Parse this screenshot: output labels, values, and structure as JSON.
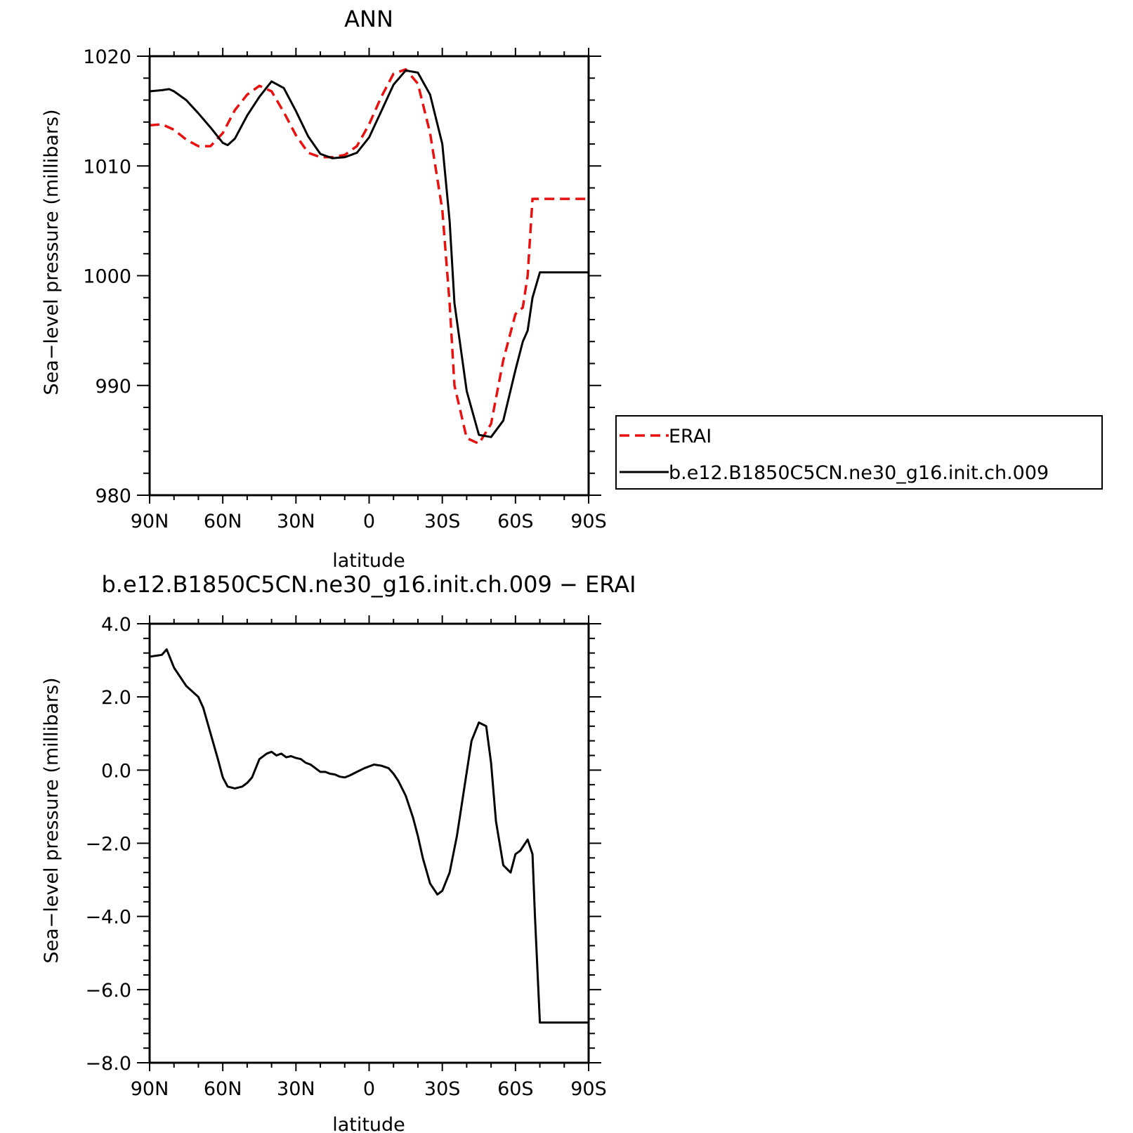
{
  "chart_data": [
    {
      "type": "line",
      "title": "ANN",
      "xlabel": "latitude",
      "ylabel": "Sea−level pressure (millibars)",
      "xlim": [
        90,
        -90
      ],
      "ylim": [
        980,
        1020
      ],
      "x_ticks": [
        90,
        60,
        30,
        0,
        -30,
        -60,
        -90
      ],
      "x_tick_labels": [
        "90N",
        "60N",
        "30N",
        "0",
        "30S",
        "60S",
        "90S"
      ],
      "y_ticks": [
        980,
        990,
        1000,
        1010,
        1020
      ],
      "y_tick_labels": [
        "980",
        "990",
        "1000",
        "1010",
        "1020"
      ],
      "legend": "right",
      "series": [
        {
          "name": "ERAI",
          "color": "#e8110f",
          "dash": "dashed",
          "x": [
            90,
            85,
            80,
            75,
            70,
            65,
            60,
            55,
            50,
            45,
            40,
            35,
            30,
            25,
            20,
            15,
            10,
            5,
            0,
            -5,
            -10,
            -15,
            -20,
            -25,
            -30,
            -33,
            -35,
            -40,
            -45,
            -50,
            -55,
            -60,
            -63,
            -65,
            -67,
            -70,
            -75,
            -77,
            -80,
            -85,
            -90
          ],
          "y": [
            1013.7,
            1013.8,
            1013.3,
            1012.4,
            1011.8,
            1011.8,
            1013.0,
            1015.1,
            1016.5,
            1017.3,
            1016.8,
            1014.9,
            1012.8,
            1011.2,
            1010.8,
            1010.8,
            1011.0,
            1011.8,
            1013.8,
            1016.3,
            1018.4,
            1018.8,
            1017.5,
            1013.0,
            1006.0,
            997.5,
            990.0,
            985.2,
            984.7,
            986.5,
            992.3,
            996.5,
            997.1,
            1000.0,
            1007.0,
            1007.0,
            1007.0,
            1007.0,
            1007.0,
            1007.0,
            1007.0
          ]
        },
        {
          "name": "b.e12.B1850C5CN.ne30_g16.init.ch.009",
          "color": "#000000",
          "dash": "solid",
          "x": [
            90,
            85,
            82,
            80,
            75,
            70,
            65,
            60,
            58,
            55,
            50,
            45,
            40,
            35,
            30,
            25,
            20,
            15,
            10,
            5,
            0,
            -5,
            -10,
            -15,
            -20,
            -25,
            -30,
            -33,
            -35,
            -40,
            -45,
            -50,
            -55,
            -60,
            -63,
            -65,
            -67,
            -70,
            -75,
            -80,
            -85,
            -88,
            -90
          ],
          "y": [
            1016.8,
            1016.9,
            1017.0,
            1016.8,
            1016.0,
            1014.8,
            1013.5,
            1012.1,
            1011.9,
            1012.5,
            1014.6,
            1016.3,
            1017.7,
            1017.1,
            1015.0,
            1012.7,
            1011.1,
            1010.7,
            1010.8,
            1011.2,
            1012.6,
            1015.0,
            1017.4,
            1018.7,
            1018.5,
            1016.5,
            1012.0,
            1005.0,
            997.5,
            989.5,
            985.5,
            985.3,
            986.8,
            991.4,
            994.0,
            995.0,
            998.0,
            1000.3,
            1000.3,
            1000.3,
            1000.3,
            1000.3,
            1000.3
          ]
        }
      ]
    },
    {
      "type": "line",
      "title": "b.e12.B1850C5CN.ne30_g16.init.ch.009  −  ERAI",
      "xlabel": "latitude",
      "ylabel": "Sea−level pressure (millibars)",
      "xlim": [
        90,
        -90
      ],
      "ylim": [
        -8.0,
        4.0
      ],
      "x_ticks": [
        90,
        60,
        30,
        0,
        -30,
        -60,
        -90
      ],
      "x_tick_labels": [
        "90N",
        "60N",
        "30N",
        "0",
        "30S",
        "60S",
        "90S"
      ],
      "y_ticks": [
        -8.0,
        -6.0,
        -4.0,
        -2.0,
        0.0,
        2.0,
        4.0
      ],
      "y_tick_labels": [
        "−8.0",
        "−6.0",
        "−4.0",
        "−2.0",
        "0.0",
        "2.0",
        "4.0"
      ],
      "series": [
        {
          "color": "#000000",
          "dash": "solid",
          "x": [
            90,
            85,
            83,
            80,
            75,
            70,
            68,
            65,
            62,
            60,
            58,
            55,
            52,
            50,
            48,
            45,
            42,
            40,
            38,
            36,
            34,
            32,
            30,
            28,
            26,
            24,
            22,
            20,
            18,
            16,
            14,
            12,
            10,
            8,
            5,
            2,
            0,
            -2,
            -5,
            -8,
            -10,
            -12,
            -15,
            -18,
            -20,
            -22,
            -25,
            -28,
            -30,
            -33,
            -36,
            -39,
            -42,
            -45,
            -48,
            -50,
            -52,
            -55,
            -58,
            -60,
            -62,
            -65,
            -67,
            -68,
            -70,
            -72,
            -75,
            -78,
            -79,
            -80,
            -82,
            -84,
            -85,
            -87,
            -90
          ],
          "y": [
            3.1,
            3.15,
            3.3,
            2.8,
            2.3,
            2.0,
            1.7,
            1.0,
            0.3,
            -0.2,
            -0.45,
            -0.5,
            -0.45,
            -0.35,
            -0.2,
            0.3,
            0.45,
            0.5,
            0.4,
            0.45,
            0.35,
            0.38,
            0.33,
            0.3,
            0.2,
            0.15,
            0.05,
            -0.05,
            -0.05,
            -0.1,
            -0.12,
            -0.18,
            -0.2,
            -0.15,
            -0.05,
            0.05,
            0.1,
            0.15,
            0.12,
            0.05,
            -0.1,
            -0.3,
            -0.7,
            -1.3,
            -1.8,
            -2.4,
            -3.1,
            -3.4,
            -3.3,
            -2.8,
            -1.8,
            -0.5,
            0.8,
            1.3,
            1.2,
            0.2,
            -1.4,
            -2.6,
            -2.8,
            -2.3,
            -2.2,
            -1.9,
            -2.3,
            -4.0,
            -6.9,
            -6.9,
            -6.9,
            -6.9,
            -6.9,
            -6.9,
            -6.9,
            -6.9,
            -6.9,
            -6.9,
            -6.9
          ]
        }
      ]
    }
  ]
}
